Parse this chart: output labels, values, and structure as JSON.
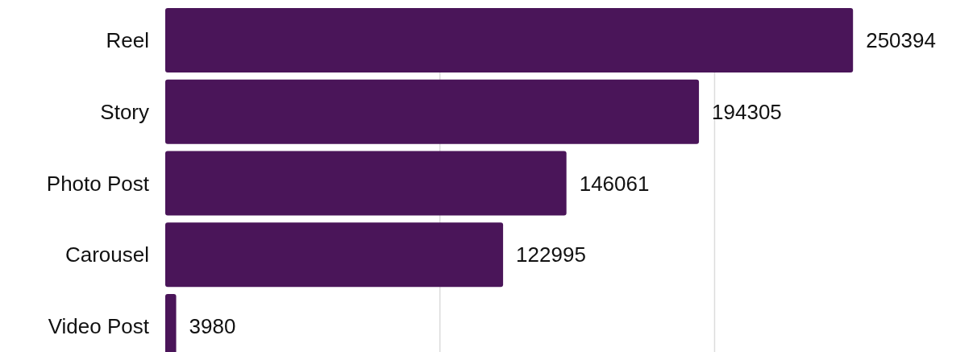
{
  "chart_data": {
    "type": "bar",
    "orientation": "horizontal",
    "categories": [
      "Reel",
      "Story",
      "Photo Post",
      "Carousel",
      "Video Post"
    ],
    "values": [
      250394,
      194305,
      146061,
      122995,
      3980
    ],
    "color": "#4a1559",
    "ref_lines": [
      {
        "axis": "x",
        "value": 100000,
        "color": "#dcdcdc"
      },
      {
        "axis": "x",
        "value": 200000,
        "color": "#dcdcdc"
      }
    ],
    "tick_labels": "y",
    "data_labels": true
  }
}
